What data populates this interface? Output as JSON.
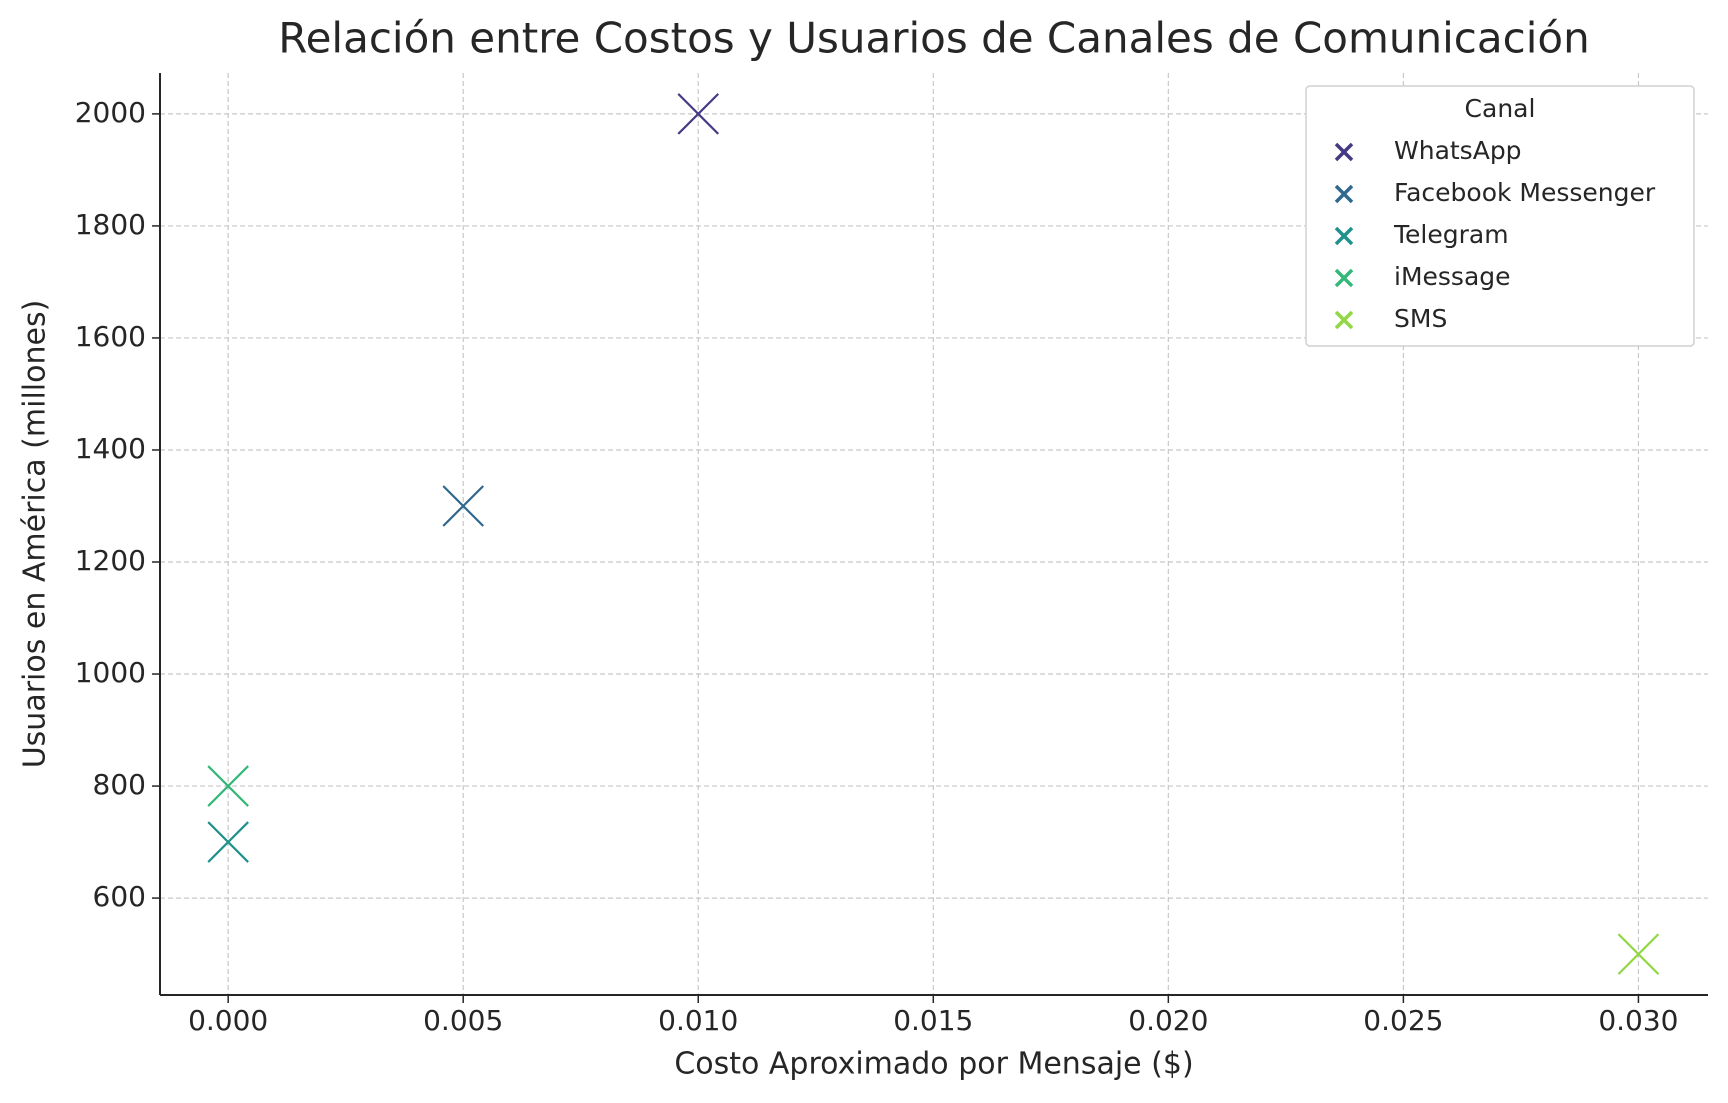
{
  "chart_data": {
    "type": "scatter",
    "title": "Relación entre Costos y Usuarios de Canales de Comunicación",
    "xlabel": "Costo Aproximado por Mensaje ($)",
    "ylabel": "Usuarios en América (millones)",
    "legend_title": "Canal",
    "legend": "upper right",
    "grid": true,
    "xlim": [
      -0.00145,
      0.03148
    ],
    "ylim": [
      427,
      2073
    ],
    "xticks": [
      {
        "value": 0,
        "label": "0.000"
      },
      {
        "value": 0.005,
        "label": "0.005"
      },
      {
        "value": 0.01,
        "label": "0.010"
      },
      {
        "value": 0.015,
        "label": "0.015"
      },
      {
        "value": 0.02,
        "label": "0.020"
      },
      {
        "value": 0.025,
        "label": "0.025"
      },
      {
        "value": 0.03,
        "label": "0.030"
      }
    ],
    "yticks": [
      600,
      800,
      1000,
      1200,
      1400,
      1600,
      1800,
      2000
    ],
    "series": [
      {
        "name": "WhatsApp",
        "color": "#443983",
        "x": [
          0.01
        ],
        "values": [
          2000
        ]
      },
      {
        "name": "Facebook Messenger",
        "color": "#31688e",
        "x": [
          0.005
        ],
        "values": [
          1300
        ]
      },
      {
        "name": "Telegram",
        "color": "#21918c",
        "x": [
          0
        ],
        "values": [
          700
        ]
      },
      {
        "name": "iMessage",
        "color": "#35b779",
        "x": [
          0
        ],
        "values": [
          800
        ]
      },
      {
        "name": "SMS",
        "color": "#90d743",
        "x": [
          0.03
        ],
        "values": [
          500
        ]
      }
    ]
  }
}
